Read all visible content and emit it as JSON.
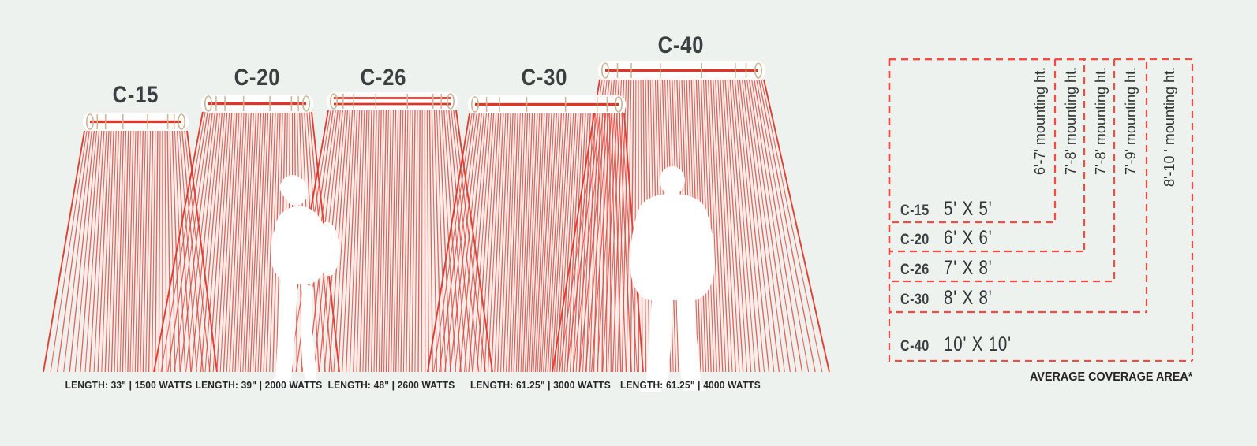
{
  "colors": {
    "background": "#edf2ee",
    "red": "#e9453c",
    "red_edge": "#e23528",
    "dashed_red": "#f14b42",
    "tan": "#c8b694",
    "white": "#ffffff",
    "text_dark": "#3a3f41",
    "text_black": "#232526"
  },
  "heaters": [
    {
      "model": "C-15",
      "spec": "LENGTH: 33\" | 1500 WATTS",
      "area": "5' X 5'",
      "mounting": "6'-7' mounting ht."
    },
    {
      "model": "C-20",
      "spec": "LENGTH: 39\" | 2000 WATTS",
      "area": "6' X 6'",
      "mounting": "7'-8' mounting ht."
    },
    {
      "model": "C-26",
      "spec": "LENGTH: 48\" | 2600 WATTS",
      "area": "7' X 8'",
      "mounting": "7'-8' mounting ht."
    },
    {
      "model": "C-30",
      "spec": "LENGTH: 61.25\" | 3000 WATTS",
      "area": "8' X 8'",
      "mounting": "7'-9' mounting ht."
    },
    {
      "model": "C-40",
      "spec": "LENGTH: 61.25\" | 4000 WATTS",
      "area": "10' X 10'",
      "mounting": "8'-10 ' mounting ht."
    }
  ],
  "coverage_table": {
    "footnote": "AVERAGE COVERAGE AREA*"
  }
}
